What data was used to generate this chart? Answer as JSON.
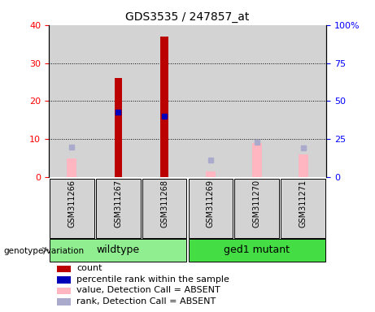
{
  "title": "GDS3535 / 247857_at",
  "samples": [
    "GSM311266",
    "GSM311267",
    "GSM311268",
    "GSM311269",
    "GSM311270",
    "GSM311271"
  ],
  "count_values": [
    null,
    26.0,
    37.0,
    null,
    null,
    null
  ],
  "rank_pct_values": [
    null,
    42.5,
    40.0,
    null,
    null,
    null
  ],
  "absent_value": [
    5.0,
    null,
    null,
    1.5,
    9.0,
    6.0
  ],
  "absent_rank_pct": [
    20.0,
    null,
    null,
    11.0,
    23.0,
    19.0
  ],
  "count_color": "#BB0000",
  "rank_color": "#0000BB",
  "absent_value_color": "#FFB6C1",
  "absent_rank_color": "#AAAACC",
  "ylim_left": [
    0,
    40
  ],
  "ylim_right": [
    0,
    100
  ],
  "yticks_left": [
    0,
    10,
    20,
    30,
    40
  ],
  "yticks_right": [
    0,
    25,
    50,
    75,
    100
  ],
  "ytick_labels_right": [
    "0",
    "25",
    "50",
    "75",
    "100%"
  ],
  "bar_width": 0.3,
  "bg_color": "#D3D3D3",
  "wildtype_color": "#90EE90",
  "mutant_color": "#44DD44",
  "legend_items": [
    {
      "label": "count",
      "color": "#BB0000"
    },
    {
      "label": "percentile rank within the sample",
      "color": "#0000BB"
    },
    {
      "label": "value, Detection Call = ABSENT",
      "color": "#FFB6C1"
    },
    {
      "label": "rank, Detection Call = ABSENT",
      "color": "#AAAACC"
    }
  ]
}
